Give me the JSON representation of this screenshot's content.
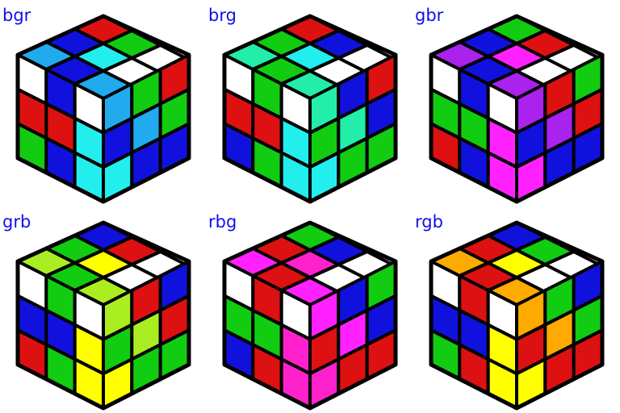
{
  "colors": {
    "R": "#dd1111",
    "G": "#11cc11",
    "B": "#1111dd",
    "W": "#ffffff",
    "C": "#22eeee",
    "S": "#22aaee",
    "T": "#22eeaa",
    "V": "#aa22ee",
    "M": "#ff22ff",
    "P": "#ff22cc",
    "Y": "#ffff00",
    "L": "#aaee22",
    "O": "#ffaa00",
    "label": "#1010ee",
    "border": "#000000"
  },
  "cubes": [
    {
      "label": "bgr",
      "top": [
        "R",
        "G",
        "W",
        "B",
        "C",
        "W",
        "S",
        "B",
        "S"
      ],
      "left": [
        "W",
        "B",
        "W",
        "R",
        "R",
        "C",
        "G",
        "B",
        "C"
      ],
      "right": [
        "S",
        "G",
        "R",
        "B",
        "S",
        "G",
        "C",
        "B",
        "B"
      ]
    },
    {
      "label": "brg",
      "top": [
        "R",
        "B",
        "W",
        "G",
        "C",
        "W",
        "T",
        "G",
        "T"
      ],
      "left": [
        "W",
        "G",
        "W",
        "R",
        "R",
        "C",
        "B",
        "G",
        "C"
      ],
      "right": [
        "T",
        "B",
        "R",
        "G",
        "T",
        "B",
        "C",
        "G",
        "G"
      ]
    },
    {
      "label": "gbr",
      "top": [
        "G",
        "R",
        "W",
        "B",
        "M",
        "W",
        "V",
        "B",
        "V"
      ],
      "left": [
        "W",
        "B",
        "W",
        "G",
        "G",
        "M",
        "R",
        "B",
        "M"
      ],
      "right": [
        "V",
        "R",
        "G",
        "B",
        "V",
        "R",
        "M",
        "B",
        "B"
      ]
    },
    {
      "label": "grb",
      "top": [
        "B",
        "R",
        "W",
        "G",
        "Y",
        "W",
        "L",
        "G",
        "L"
      ],
      "left": [
        "W",
        "G",
        "W",
        "B",
        "B",
        "Y",
        "R",
        "G",
        "Y"
      ],
      "right": [
        "L",
        "R",
        "B",
        "G",
        "L",
        "R",
        "Y",
        "G",
        "G"
      ]
    },
    {
      "label": "rbg",
      "top": [
        "G",
        "B",
        "W",
        "R",
        "P",
        "W",
        "M",
        "R",
        "M"
      ],
      "left": [
        "W",
        "R",
        "W",
        "G",
        "G",
        "P",
        "B",
        "R",
        "P"
      ],
      "right": [
        "M",
        "B",
        "G",
        "R",
        "M",
        "B",
        "P",
        "R",
        "R"
      ]
    },
    {
      "label": "rgb",
      "top": [
        "B",
        "G",
        "W",
        "R",
        "Y",
        "W",
        "O",
        "R",
        "O"
      ],
      "left": [
        "W",
        "R",
        "W",
        "B",
        "B",
        "Y",
        "G",
        "R",
        "Y"
      ],
      "right": [
        "O",
        "G",
        "B",
        "R",
        "O",
        "G",
        "Y",
        "R",
        "R"
      ]
    }
  ]
}
